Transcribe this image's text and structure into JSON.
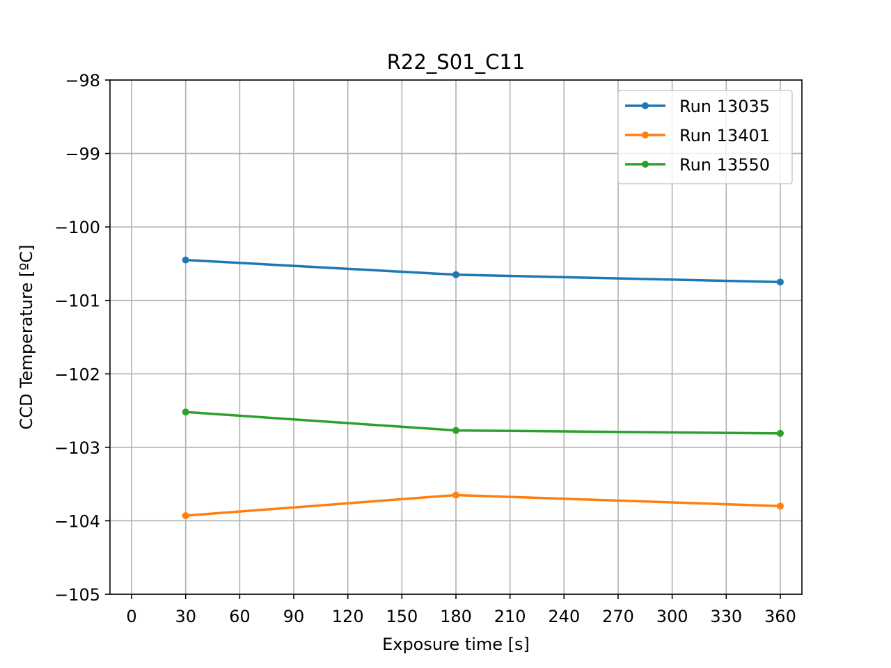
{
  "chart_data": {
    "type": "line",
    "title": "R22_S01_C11",
    "xlabel": "Exposure time [s]",
    "ylabel": "CCD Temperature [ºC]",
    "xlim": [
      -12,
      372
    ],
    "ylim": [
      -105,
      -98
    ],
    "xticks": [
      0,
      30,
      60,
      90,
      120,
      150,
      180,
      210,
      240,
      270,
      300,
      330,
      360
    ],
    "xtick_labels": [
      "0",
      "30",
      "60",
      "90",
      "120",
      "150",
      "180",
      "210",
      "240",
      "270",
      "300",
      "330",
      "360"
    ],
    "yticks": [
      -105,
      -104,
      -103,
      -102,
      -101,
      -100,
      -99,
      -98
    ],
    "ytick_labels": [
      "−105",
      "−104",
      "−103",
      "−102",
      "−101",
      "−100",
      "−99",
      "−98"
    ],
    "grid": true,
    "legend_position": "top-right",
    "x": [
      30,
      180,
      360
    ],
    "series": [
      {
        "name": "Run 13035",
        "color": "#1f77b4",
        "values": [
          -100.45,
          -100.65,
          -100.75
        ]
      },
      {
        "name": "Run 13401",
        "color": "#ff7f0e",
        "values": [
          -103.93,
          -103.65,
          -103.8
        ]
      },
      {
        "name": "Run 13550",
        "color": "#2ca02c",
        "values": [
          -102.52,
          -102.77,
          -102.81
        ]
      }
    ]
  }
}
